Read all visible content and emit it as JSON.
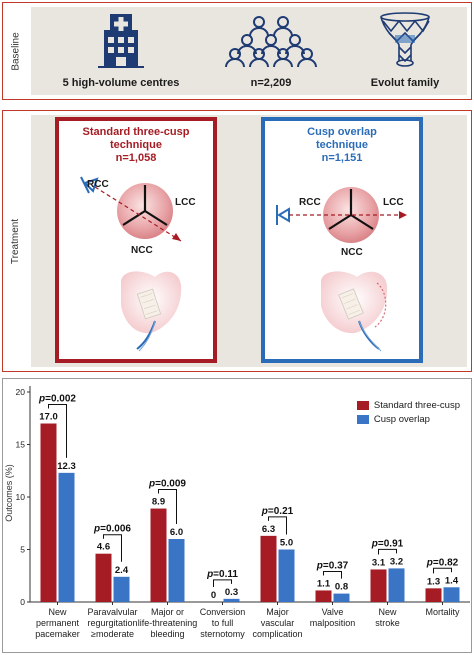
{
  "baseline": {
    "side_label": "Baseline",
    "items": [
      {
        "label": "5 high-volume centres",
        "icon": "hospital-icon"
      },
      {
        "label": "n=2,209",
        "icon": "people-group-icon"
      },
      {
        "label": "Evolut family",
        "icon": "valve-stent-icon"
      }
    ]
  },
  "treatment": {
    "side_label": "Treatment",
    "standard": {
      "title_line1": "Standard three-cusp",
      "title_line2": "technique",
      "n": "n=1,058"
    },
    "overlap": {
      "title_line1": "Cusp overlap",
      "title_line2": "technique",
      "n": "n=1,151"
    },
    "cusps": {
      "rcc": "RCC",
      "lcc": "LCC",
      "ncc": "NCC"
    }
  },
  "colors": {
    "standard": "#a51c24",
    "overlap": "#3a74c4",
    "frame_red": "#c0392b"
  },
  "chart_data": {
    "type": "bar",
    "ylabel": "Outcomes (%)",
    "ylim": [
      0,
      20
    ],
    "yticks": [
      "0",
      "5",
      "10",
      "15",
      "20"
    ],
    "categories": [
      {
        "lines": [
          "New",
          "permanent",
          "pacemaker"
        ]
      },
      {
        "lines": [
          "Paravalvular",
          "regurgitation",
          "≥moderate"
        ]
      },
      {
        "lines": [
          "Major or",
          "life-threatening",
          "bleeding"
        ]
      },
      {
        "lines": [
          "Conversion",
          "to full",
          "sternotomy"
        ]
      },
      {
        "lines": [
          "Major",
          "vascular",
          "complication"
        ]
      },
      {
        "lines": [
          "Valve",
          "malposition"
        ]
      },
      {
        "lines": [
          "New",
          "stroke"
        ]
      },
      {
        "lines": [
          "Mortality"
        ]
      }
    ],
    "series": [
      {
        "name": "Standard three-cusp",
        "values": [
          17.0,
          4.6,
          8.9,
          0,
          6.3,
          1.1,
          3.1,
          1.3
        ],
        "labels": [
          "17.0",
          "4.6",
          "8.9",
          "0",
          "6.3",
          "1.1",
          "3.1",
          "1.3"
        ]
      },
      {
        "name": "Cusp overlap",
        "values": [
          12.3,
          2.4,
          6.0,
          0.3,
          5.0,
          0.8,
          3.2,
          1.4
        ],
        "labels": [
          "12.3",
          "2.4",
          "6.0",
          "0.3",
          "5.0",
          "0.8",
          "3.2",
          "1.4"
        ]
      }
    ],
    "pvalues": [
      "p=0.002",
      "p=0.006",
      "p=0.009",
      "p=0.11",
      "p=0.21",
      "p=0.37",
      "p=0.91",
      "p=0.82"
    ],
    "legend_position": "top-right",
    "grid": false
  }
}
